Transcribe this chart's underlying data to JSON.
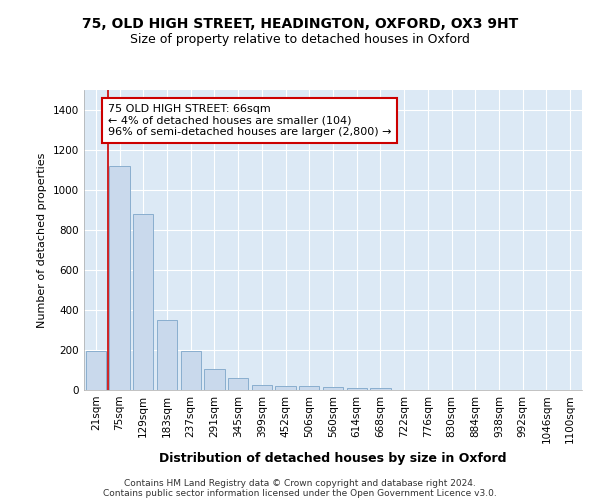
{
  "title_line1": "75, OLD HIGH STREET, HEADINGTON, OXFORD, OX3 9HT",
  "title_line2": "Size of property relative to detached houses in Oxford",
  "xlabel": "Distribution of detached houses by size in Oxford",
  "ylabel": "Number of detached properties",
  "footer_line1": "Contains HM Land Registry data © Crown copyright and database right 2024.",
  "footer_line2": "Contains public sector information licensed under the Open Government Licence v3.0.",
  "categories": [
    "21sqm",
    "75sqm",
    "129sqm",
    "183sqm",
    "237sqm",
    "291sqm",
    "345sqm",
    "399sqm",
    "452sqm",
    "506sqm",
    "560sqm",
    "614sqm",
    "668sqm",
    "722sqm",
    "776sqm",
    "830sqm",
    "884sqm",
    "938sqm",
    "992sqm",
    "1046sqm",
    "1100sqm"
  ],
  "values": [
    195,
    1120,
    880,
    350,
    195,
    105,
    58,
    25,
    20,
    18,
    15,
    12,
    12,
    0,
    0,
    0,
    0,
    0,
    0,
    0,
    0
  ],
  "bar_color": "#c9d9ec",
  "bar_edge_color": "#89aece",
  "highlight_index": 1,
  "highlight_line_color": "#cc0000",
  "ylim": [
    0,
    1500
  ],
  "yticks": [
    0,
    200,
    400,
    600,
    800,
    1000,
    1200,
    1400
  ],
  "annotation_text": "75 OLD HIGH STREET: 66sqm\n← 4% of detached houses are smaller (104)\n96% of semi-detached houses are larger (2,800) →",
  "annotation_box_color": "#ffffff",
  "annotation_box_edge": "#cc0000",
  "bg_color": "#ffffff",
  "plot_bg_color": "#dce9f5",
  "grid_color": "#ffffff",
  "title1_fontsize": 10,
  "title2_fontsize": 9,
  "ylabel_fontsize": 8,
  "xlabel_fontsize": 9,
  "tick_fontsize": 7.5,
  "footer_fontsize": 6.5,
  "ann_fontsize": 8
}
